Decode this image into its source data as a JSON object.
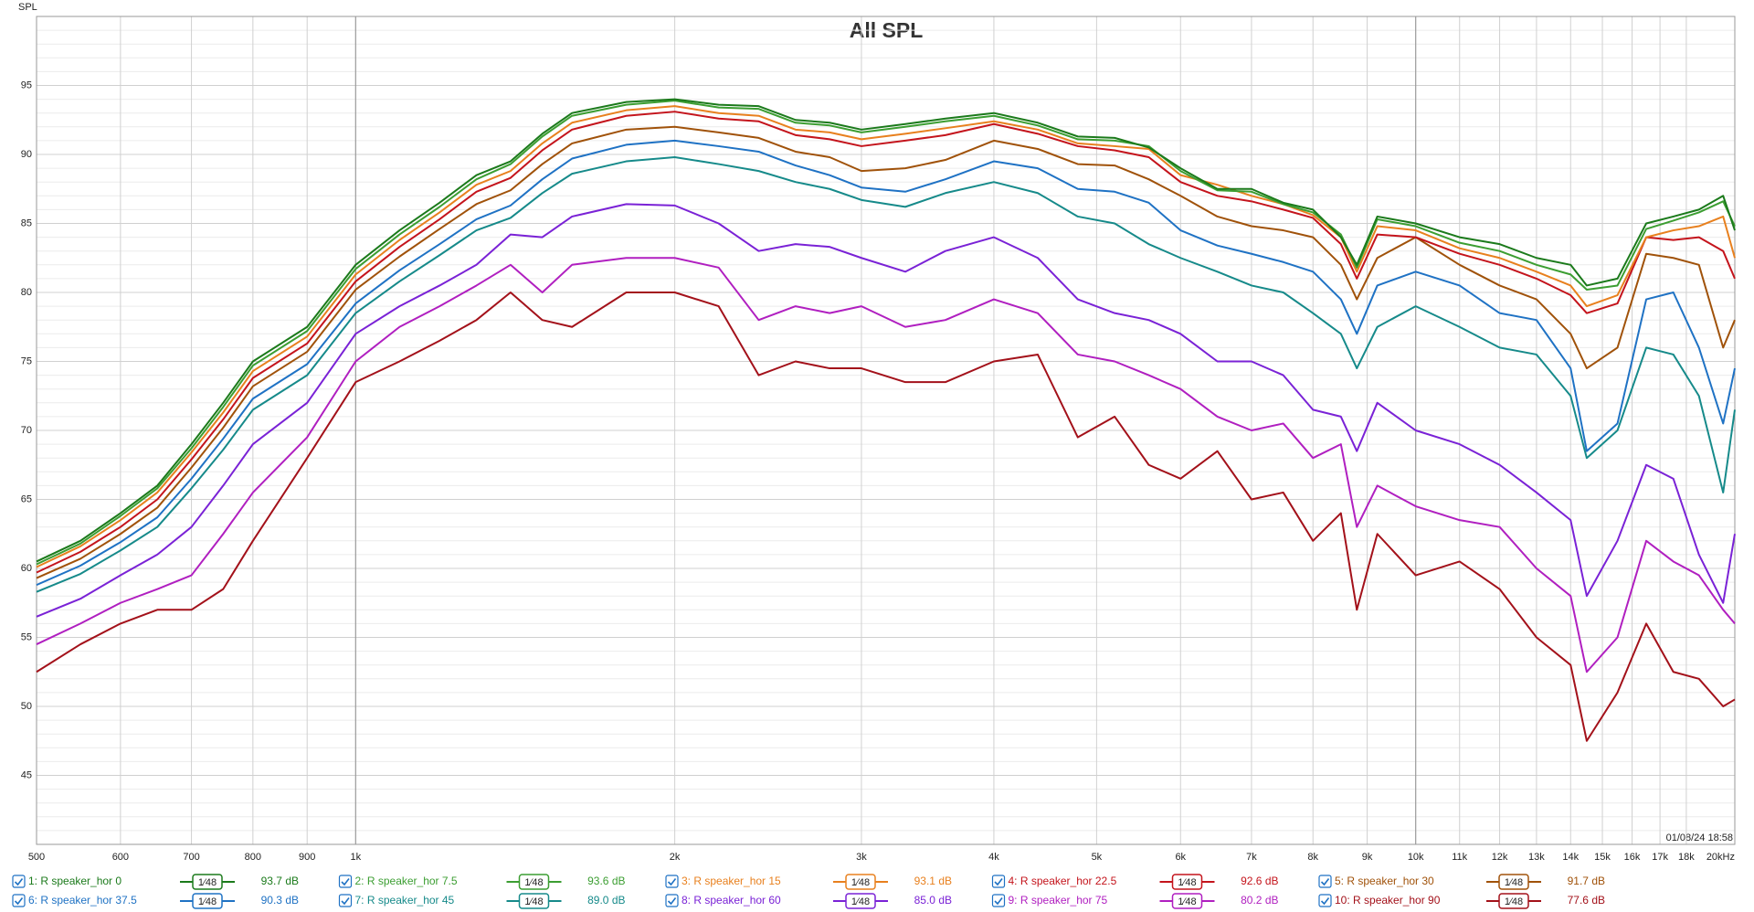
{
  "chart_data": {
    "type": "line",
    "title": "All SPL",
    "y_label": "SPL",
    "timestamp": "01/08/24 18:58",
    "x_log": true,
    "grid": true,
    "xlim": [
      500,
      20000
    ],
    "ylim": [
      40,
      100
    ],
    "xticks": [
      500,
      600,
      700,
      800,
      900,
      {
        "value": 1000,
        "label": "1k"
      },
      {
        "value": 2000,
        "label": "2k"
      },
      {
        "value": 3000,
        "label": "3k"
      },
      {
        "value": 4000,
        "label": "4k"
      },
      {
        "value": 5000,
        "label": "5k"
      },
      {
        "value": 6000,
        "label": "6k"
      },
      {
        "value": 7000,
        "label": "7k"
      },
      {
        "value": 8000,
        "label": "8k"
      },
      {
        "value": 9000,
        "label": "9k"
      },
      {
        "value": 10000,
        "label": "10k"
      },
      {
        "value": 11000,
        "label": "11k"
      },
      {
        "value": 12000,
        "label": "12k"
      },
      {
        "value": 13000,
        "label": "13k"
      },
      {
        "value": 14000,
        "label": "14k"
      },
      {
        "value": 15000,
        "label": "15k"
      },
      {
        "value": 16000,
        "label": "16k"
      },
      {
        "value": 17000,
        "label": "17k"
      },
      {
        "value": 18000,
        "label": "18k"
      },
      {
        "value": 20000,
        "label": "20kHz"
      }
    ],
    "yticks": [
      45,
      50,
      55,
      60,
      65,
      70,
      75,
      80,
      85,
      90,
      95
    ],
    "x": [
      500,
      550,
      600,
      650,
      700,
      750,
      800,
      900,
      1000,
      1100,
      1200,
      1300,
      1400,
      1500,
      1600,
      1800,
      2000,
      2200,
      2400,
      2600,
      2800,
      3000,
      3300,
      3600,
      4000,
      4400,
      4800,
      5200,
      5600,
      6000,
      6500,
      7000,
      7500,
      8000,
      8500,
      8800,
      9200,
      10000,
      11000,
      12000,
      13000,
      14000,
      14500,
      15500,
      16500,
      17500,
      18500,
      19500,
      20000
    ],
    "series": [
      {
        "name": "1: R speaker_hor 0",
        "color": "#1b7a1b",
        "smoothing": "1⁄48",
        "level": "93.7 dB",
        "values": [
          60.5,
          62,
          64,
          66,
          69,
          72,
          75,
          77.5,
          82,
          84.5,
          86.5,
          88.5,
          89.5,
          91.5,
          93,
          93.8,
          94,
          93.6,
          93.5,
          92.5,
          92.3,
          91.8,
          92.2,
          92.6,
          93,
          92.3,
          91.3,
          91.2,
          90.5,
          89,
          87.5,
          87.5,
          86.5,
          86,
          84,
          82,
          85.5,
          85,
          84,
          83.5,
          82.5,
          82,
          80.5,
          81,
          85,
          85.5,
          86,
          87,
          84.5
        ]
      },
      {
        "name": "2: R speaker_hor 7.5",
        "color": "#3c9e32",
        "smoothing": "1⁄48",
        "level": "93.6 dB",
        "values": [
          60.3,
          61.8,
          63.8,
          65.8,
          68.7,
          71.7,
          74.7,
          77.2,
          81.7,
          84.2,
          86.2,
          88.2,
          89.3,
          91.3,
          92.8,
          93.6,
          93.9,
          93.4,
          93.3,
          92.3,
          92.1,
          91.6,
          92,
          92.4,
          92.8,
          92.1,
          91.1,
          91,
          90.6,
          88.8,
          87.4,
          87.3,
          86.4,
          85.8,
          84.2,
          81.8,
          85.3,
          84.8,
          83.6,
          83,
          82,
          81.3,
          80.2,
          80.5,
          84.6,
          85.2,
          85.8,
          86.6,
          84.8
        ]
      },
      {
        "name": "3: R speaker_hor 15",
        "color": "#e8801e",
        "smoothing": "1⁄48",
        "level": "93.1 dB",
        "values": [
          60.1,
          61.6,
          63.5,
          65.5,
          68.4,
          71.3,
          74.3,
          76.8,
          81.3,
          83.8,
          85.8,
          87.8,
          88.8,
          90.8,
          92.3,
          93.2,
          93.5,
          93,
          92.8,
          91.8,
          91.6,
          91.1,
          91.5,
          91.9,
          92.4,
          91.8,
          90.8,
          90.6,
          90.4,
          88.5,
          87.8,
          87,
          86.4,
          85.6,
          84,
          81.5,
          84.8,
          84.5,
          83.2,
          82.5,
          81.5,
          80.5,
          79,
          79.8,
          84,
          84.5,
          84.8,
          85.5,
          82.5
        ]
      },
      {
        "name": "4: R speaker_hor 22.5",
        "color": "#c4141c",
        "smoothing": "1⁄48",
        "level": "92.6 dB",
        "values": [
          59.7,
          61.2,
          63,
          65,
          67.9,
          70.8,
          73.8,
          76.3,
          80.8,
          83.3,
          85.3,
          87.3,
          88.3,
          90.3,
          91.8,
          92.8,
          93.1,
          92.6,
          92.4,
          91.4,
          91.1,
          90.6,
          91,
          91.4,
          92.2,
          91.5,
          90.6,
          90.3,
          89.8,
          88,
          87,
          86.6,
          86,
          85.4,
          83.5,
          81,
          84.2,
          84,
          82.8,
          82,
          81,
          79.8,
          78.5,
          79.2,
          84,
          83.8,
          84,
          83,
          81
        ]
      },
      {
        "name": "5: R speaker_hor 30",
        "color": "#a0520a",
        "smoothing": "1⁄48",
        "level": "91.7 dB",
        "values": [
          59.3,
          60.7,
          62.5,
          64.4,
          67.3,
          70.2,
          73.2,
          75.7,
          80.2,
          82.6,
          84.6,
          86.4,
          87.4,
          89.3,
          90.8,
          91.8,
          92,
          91.6,
          91.2,
          90.2,
          89.8,
          88.8,
          89,
          89.6,
          91,
          90.4,
          89.3,
          89.2,
          88.2,
          87,
          85.5,
          84.8,
          84.5,
          84,
          82,
          79.5,
          82.5,
          84,
          82,
          80.5,
          79.5,
          77,
          74.5,
          76,
          82.8,
          82.5,
          82,
          76,
          78
        ]
      },
      {
        "name": "6: R speaker_hor 37.5",
        "color": "#1f72c4",
        "smoothing": "1⁄48",
        "level": "90.3 dB",
        "values": [
          58.8,
          60.2,
          61.9,
          63.7,
          66.5,
          69.4,
          72.3,
          74.8,
          79.2,
          81.6,
          83.5,
          85.3,
          86.3,
          88.2,
          89.7,
          90.7,
          91,
          90.6,
          90.2,
          89.2,
          88.5,
          87.6,
          87.3,
          88.2,
          89.5,
          89,
          87.5,
          87.3,
          86.5,
          84.5,
          83.4,
          82.8,
          82.2,
          81.5,
          79.5,
          77,
          80.5,
          81.5,
          80.5,
          78.5,
          78,
          74.5,
          68.5,
          70.5,
          79.5,
          80,
          76,
          70.5,
          74.5
        ]
      },
      {
        "name": "7: R speaker_hor 45",
        "color": "#168a8a",
        "smoothing": "1⁄48",
        "level": "89.0 dB",
        "values": [
          58.3,
          59.6,
          61.3,
          63,
          65.8,
          68.6,
          71.5,
          74,
          78.5,
          80.8,
          82.7,
          84.5,
          85.4,
          87.2,
          88.6,
          89.5,
          89.8,
          89.3,
          88.8,
          88,
          87.5,
          86.7,
          86.2,
          87.2,
          88,
          87.2,
          85.5,
          85,
          83.5,
          82.5,
          81.5,
          80.5,
          80,
          78.5,
          77,
          74.5,
          77.5,
          79,
          77.5,
          76,
          75.5,
          72.5,
          68,
          70,
          76,
          75.5,
          72.5,
          65.5,
          71.5
        ]
      },
      {
        "name": "8: R speaker_hor 60",
        "color": "#7a22d6",
        "smoothing": "1⁄48",
        "level": "85.0 dB",
        "values": [
          56.5,
          57.8,
          59.5,
          61,
          63,
          66,
          69,
          72,
          77,
          79,
          80.5,
          82,
          84.2,
          84,
          85.5,
          86.4,
          86.3,
          85,
          83,
          83.5,
          83.3,
          82.5,
          81.5,
          83,
          84,
          82.5,
          79.5,
          78.5,
          78,
          77,
          75,
          75,
          74,
          71.5,
          71,
          68.5,
          72,
          70,
          69,
          67.5,
          65.5,
          63.5,
          58,
          62,
          67.5,
          66.5,
          61,
          57.5,
          62.5
        ]
      },
      {
        "name": "9: R speaker_hor 75",
        "color": "#b01fc0",
        "smoothing": "1⁄48",
        "level": "80.2 dB",
        "values": [
          54.5,
          56,
          57.5,
          58.5,
          59.5,
          62.5,
          65.5,
          69.5,
          75,
          77.5,
          79,
          80.5,
          82,
          80,
          82,
          82.5,
          82.5,
          81.8,
          78,
          79,
          78.5,
          79,
          77.5,
          78,
          79.5,
          78.5,
          75.5,
          75,
          74,
          73,
          71,
          70,
          70.5,
          68,
          69,
          63,
          66,
          64.5,
          63.5,
          63,
          60,
          58,
          52.5,
          55,
          62,
          60.5,
          59.5,
          57,
          56
        ]
      },
      {
        "name": "10: R speaker_hor 90",
        "color": "#a3111a",
        "smoothing": "1⁄48",
        "level": "77.6 dB",
        "values": [
          52.5,
          54.5,
          56,
          57,
          57,
          58.5,
          62,
          68,
          73.5,
          75,
          76.5,
          78,
          80,
          78,
          77.5,
          80,
          80,
          79,
          74,
          75,
          74.5,
          74.5,
          73.5,
          73.5,
          75,
          75.5,
          69.5,
          71,
          67.5,
          66.5,
          68.5,
          65,
          65.5,
          62,
          64,
          57,
          62.5,
          59.5,
          60.5,
          58.5,
          55,
          53,
          47.5,
          51,
          56,
          52.5,
          52,
          50,
          50.5
        ]
      }
    ]
  }
}
